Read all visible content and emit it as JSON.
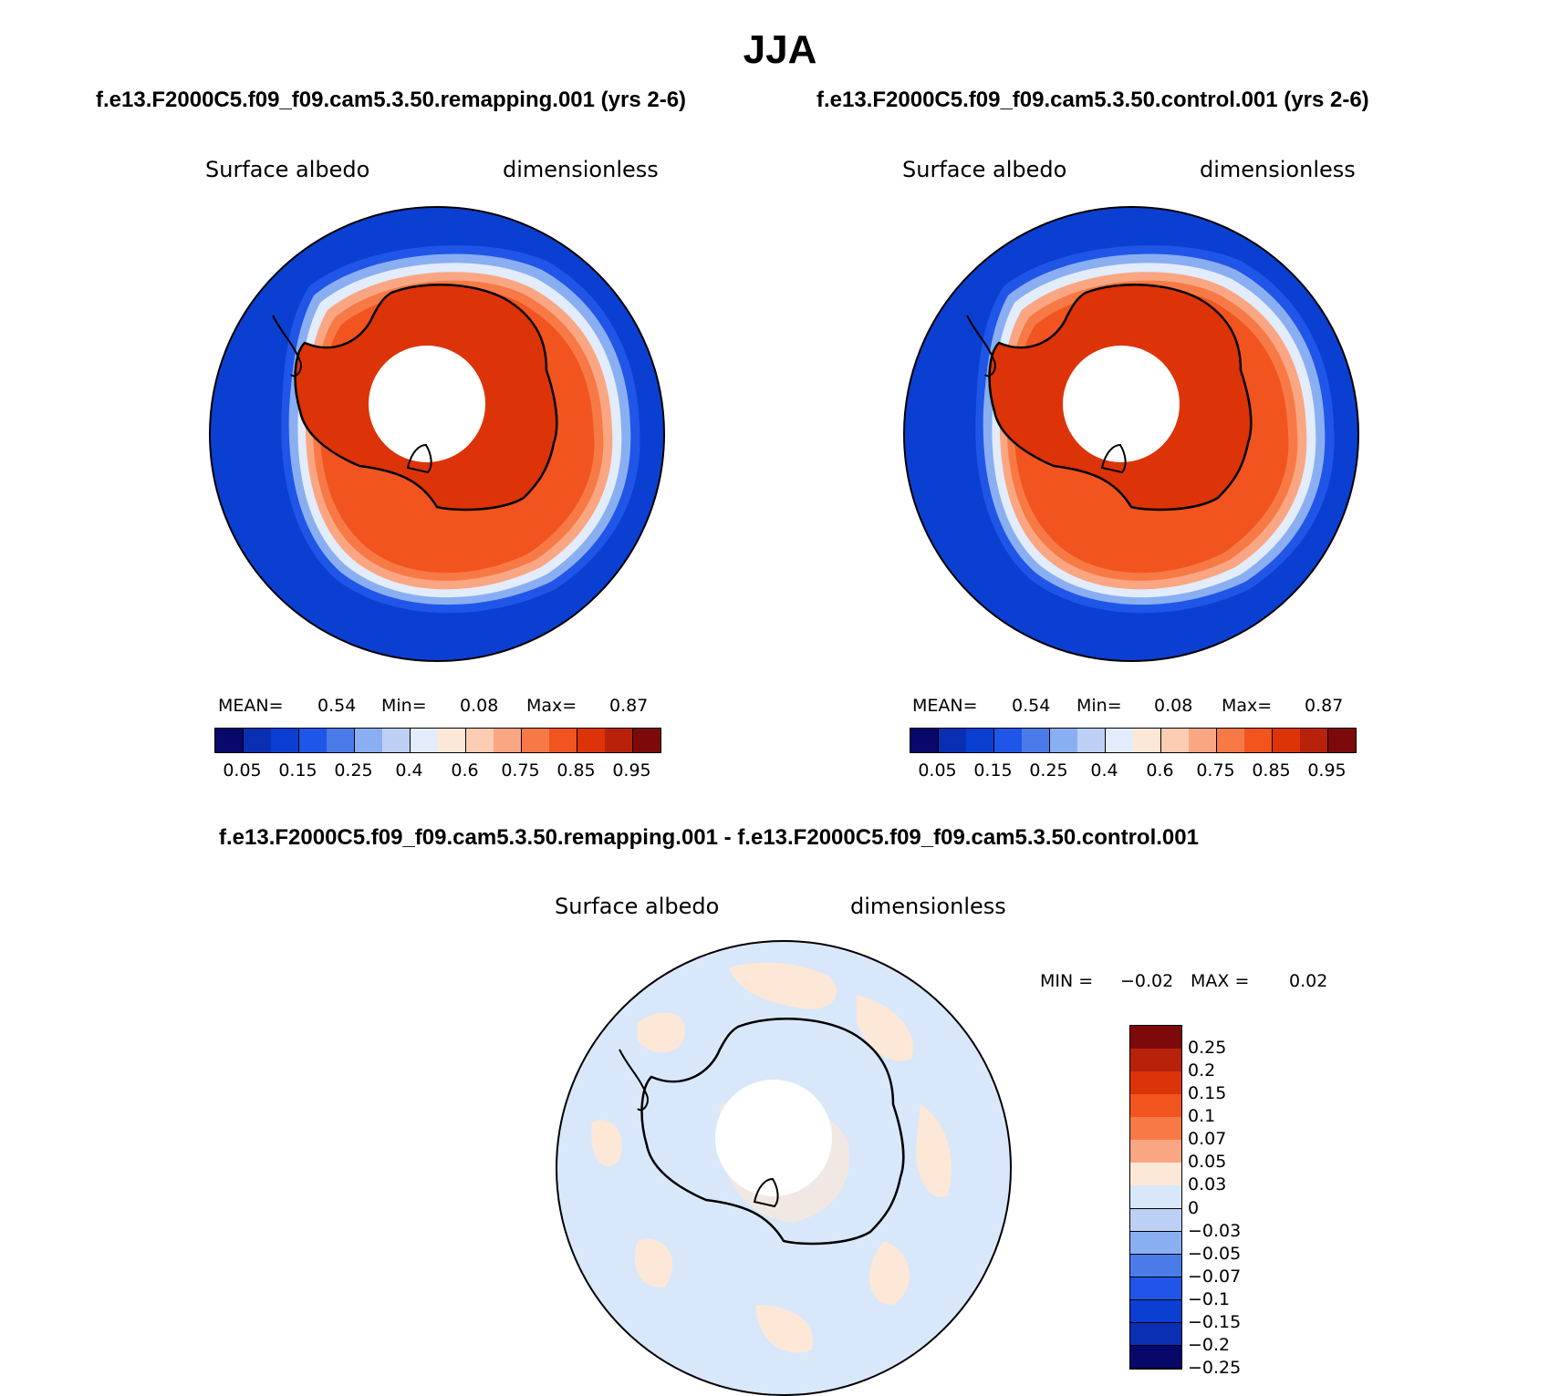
{
  "title": "JJA",
  "panels": [
    {
      "case": "f.e13.F2000C5.f09_f09.cam5.3.50.remapping.001 (yrs 2-6)",
      "variable": "Surface albedo",
      "units": "dimensionless",
      "stats": {
        "mean_label": "MEAN=",
        "mean": "0.54",
        "min_label": "Min=",
        "min": "0.08",
        "max_label": "Max=",
        "max": "0.87"
      }
    },
    {
      "case": "f.e13.F2000C5.f09_f09.cam5.3.50.control.001 (yrs 2-6)",
      "variable": "Surface albedo",
      "units": "dimensionless",
      "stats": {
        "mean_label": "MEAN=",
        "mean": "0.54",
        "min_label": "Min=",
        "min": "0.08",
        "max_label": "Max=",
        "max": "0.87"
      }
    }
  ],
  "abs_colorbar": {
    "colors": [
      "#08086b",
      "#0a2fb3",
      "#0a3fd1",
      "#1f56e8",
      "#4b7be8",
      "#8aaef2",
      "#bcd0f5",
      "#e2ecfb",
      "#fde8d8",
      "#fcccb3",
      "#fba683",
      "#f77a46",
      "#f25420",
      "#dd3308",
      "#b8220a",
      "#7d0a0a"
    ],
    "ticks": [
      "0.05",
      "0.15",
      "0.25",
      "0.4",
      "0.6",
      "0.75",
      "0.85",
      "0.95"
    ]
  },
  "diff": {
    "case": "f.e13.F2000C5.f09_f09.cam5.3.50.remapping.001 - f.e13.F2000C5.f09_f09.cam5.3.50.control.001",
    "variable": "Surface albedo",
    "units": "dimensionless",
    "stats": {
      "min_label": "MIN =",
      "min": "−0.02",
      "max_label": "MAX =",
      "max": "0.02"
    },
    "colorbar": {
      "colors": [
        "#7d0a0a",
        "#b8220a",
        "#dd3308",
        "#f25420",
        "#f77a46",
        "#fba683",
        "#fde8d8",
        "#d8e8fa",
        "#bcd0f5",
        "#8aaef2",
        "#4b7be8",
        "#1f56e8",
        "#0a3fd1",
        "#0a2fb3",
        "#08086b"
      ],
      "ticks": [
        "0.25",
        "0.2",
        "0.15",
        "0.1",
        "0.07",
        "0.05",
        "0.03",
        "0",
        "−0.03",
        "−0.05",
        "−0.07",
        "−0.1",
        "−0.15",
        "−0.2",
        "−0.25"
      ]
    }
  }
}
